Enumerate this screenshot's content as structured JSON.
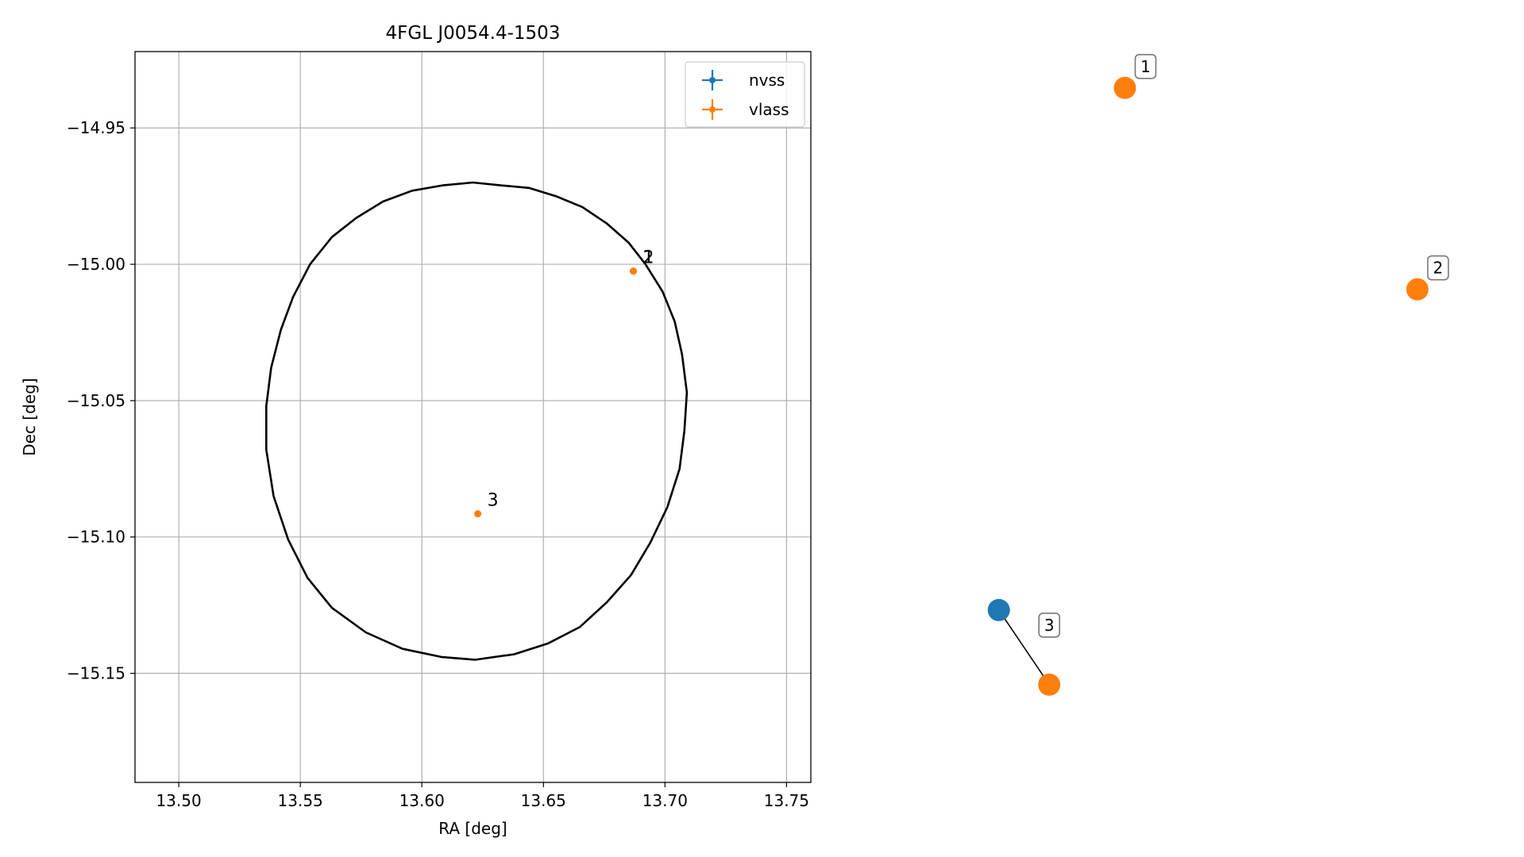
{
  "chart_data": [
    {
      "type": "scatter",
      "title": "4FGL J0054.4-1503",
      "xlabel": "RA [deg]",
      "ylabel": "Dec [deg]",
      "xlim": [
        13.482,
        13.76
      ],
      "ylim": [
        -15.19,
        -14.922
      ],
      "xticks": [
        "13.50",
        "13.55",
        "13.60",
        "13.65",
        "13.70",
        "13.75"
      ],
      "yticks": [
        "−14.95",
        "−15.00",
        "−15.05",
        "−15.10",
        "−15.15"
      ],
      "grid": true,
      "legend_position": "top-right",
      "series": [
        {
          "name": "nvss",
          "color": "#1f77b4",
          "points": []
        },
        {
          "name": "vlass",
          "color": "#ff7f0e",
          "points": [
            {
              "label": "1",
              "x": 13.687,
              "y": -15.0025
            },
            {
              "label": "2",
              "x": 13.687,
              "y": -15.0025
            },
            {
              "label": "3",
              "x": 13.623,
              "y": -15.0915
            }
          ]
        }
      ],
      "ellipse": {
        "color": "#000000",
        "points": [
          [
            13.632,
            -14.971
          ],
          [
            13.644,
            -14.972
          ],
          [
            13.655,
            -14.975
          ],
          [
            13.666,
            -14.979
          ],
          [
            13.676,
            -14.985
          ],
          [
            13.685,
            -14.992
          ],
          [
            13.692,
            -15.0
          ],
          [
            13.699,
            -15.01
          ],
          [
            13.704,
            -15.021
          ],
          [
            13.707,
            -15.033
          ],
          [
            13.709,
            -15.047
          ],
          [
            13.708,
            -15.061
          ],
          [
            13.706,
            -15.075
          ],
          [
            13.701,
            -15.089
          ],
          [
            13.694,
            -15.102
          ],
          [
            13.686,
            -15.114
          ],
          [
            13.676,
            -15.124
          ],
          [
            13.665,
            -15.133
          ],
          [
            13.652,
            -15.139
          ],
          [
            13.638,
            -15.143
          ],
          [
            13.622,
            -15.145
          ],
          [
            13.608,
            -15.144
          ],
          [
            13.592,
            -15.141
          ],
          [
            13.577,
            -15.135
          ],
          [
            13.563,
            -15.126
          ],
          [
            13.553,
            -15.115
          ],
          [
            13.545,
            -15.101
          ],
          [
            13.539,
            -15.085
          ],
          [
            13.536,
            -15.068
          ],
          [
            13.536,
            -15.052
          ],
          [
            13.538,
            -15.038
          ],
          [
            13.542,
            -15.024
          ],
          [
            13.547,
            -15.012
          ],
          [
            13.554,
            -15.0
          ],
          [
            13.563,
            -14.99
          ],
          [
            13.573,
            -14.983
          ],
          [
            13.584,
            -14.977
          ],
          [
            13.596,
            -14.973
          ],
          [
            13.609,
            -14.971
          ],
          [
            13.621,
            -14.97
          ],
          [
            13.632,
            -14.971
          ]
        ]
      }
    },
    {
      "type": "scatter",
      "title": "",
      "axes": "off",
      "nodes": [
        {
          "label": "1",
          "series": "vlass",
          "color": "#ff7f0e",
          "x": 0.27,
          "y": 0.93,
          "labeled": true
        },
        {
          "label": "2",
          "series": "vlass",
          "color": "#ff7f0e",
          "x": 0.85,
          "y": 0.66,
          "labeled": true
        },
        {
          "label": "",
          "series": "nvss",
          "color": "#1f77b4",
          "x": 0.02,
          "y": 0.23,
          "labeled": false
        },
        {
          "label": "3",
          "series": "vlass",
          "color": "#ff7f0e",
          "x": 0.12,
          "y": 0.13,
          "labeled": true
        }
      ],
      "links": [
        [
          2,
          3
        ]
      ],
      "xlim": [
        0,
        1
      ],
      "ylim": [
        0,
        1
      ]
    }
  ]
}
